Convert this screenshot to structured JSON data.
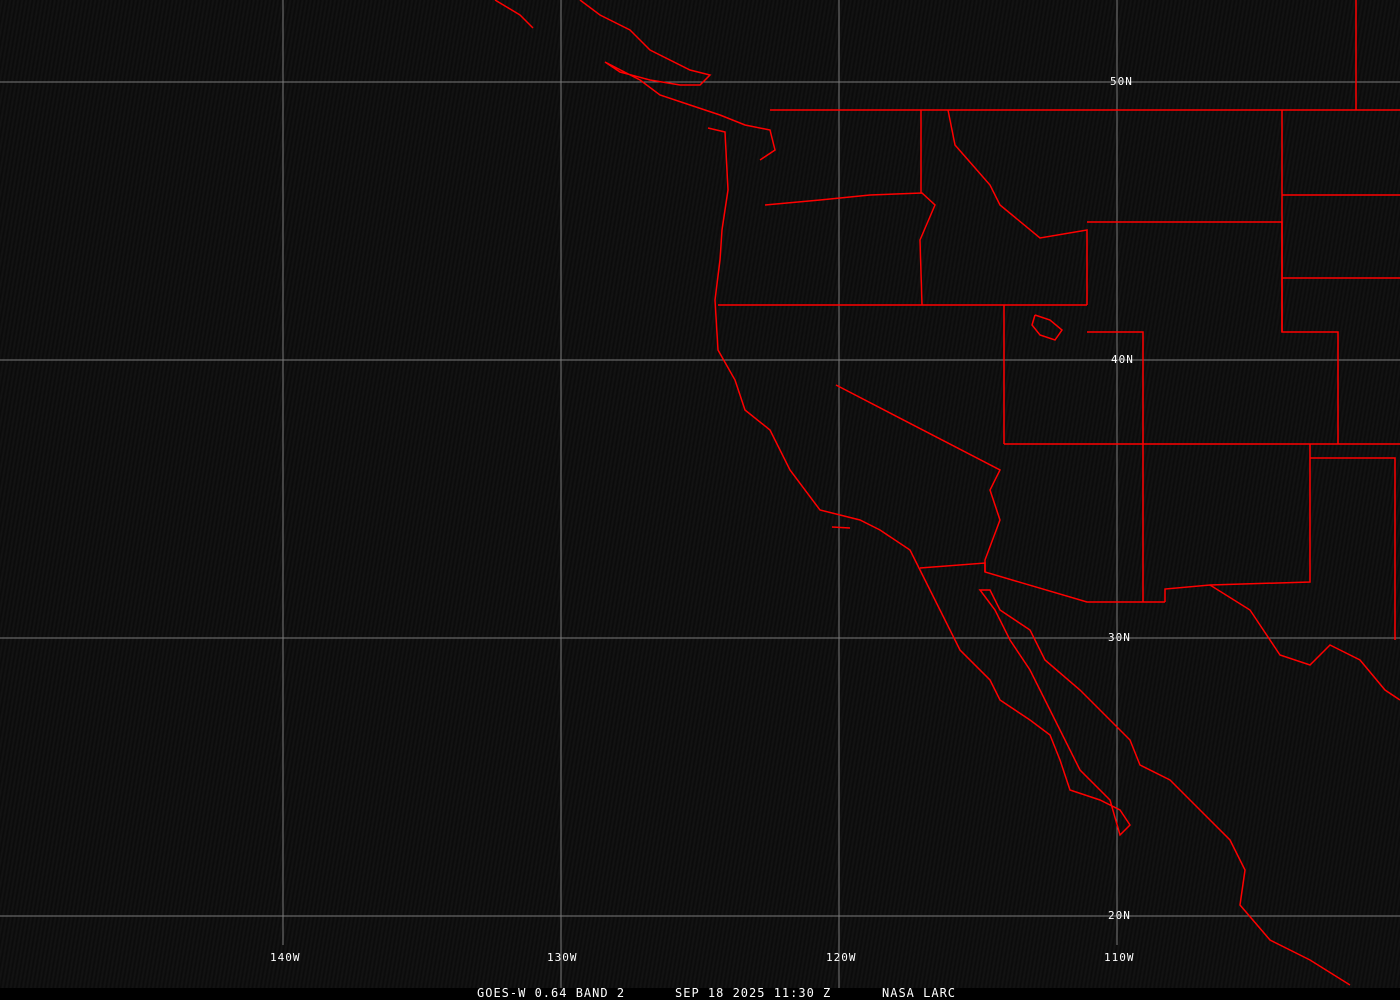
{
  "map": {
    "lat_labels": [
      "50N",
      "40N",
      "30N",
      "20N"
    ],
    "lon_labels": [
      "140W",
      "130W",
      "120W",
      "110W"
    ],
    "grid_color": "#808080",
    "boundary_color": "#ff0000"
  },
  "caption": {
    "product": "GOES-W 0.64 BAND 2",
    "datetime": "SEP 18 2025 11:30 Z",
    "source": "NASA LARC"
  }
}
